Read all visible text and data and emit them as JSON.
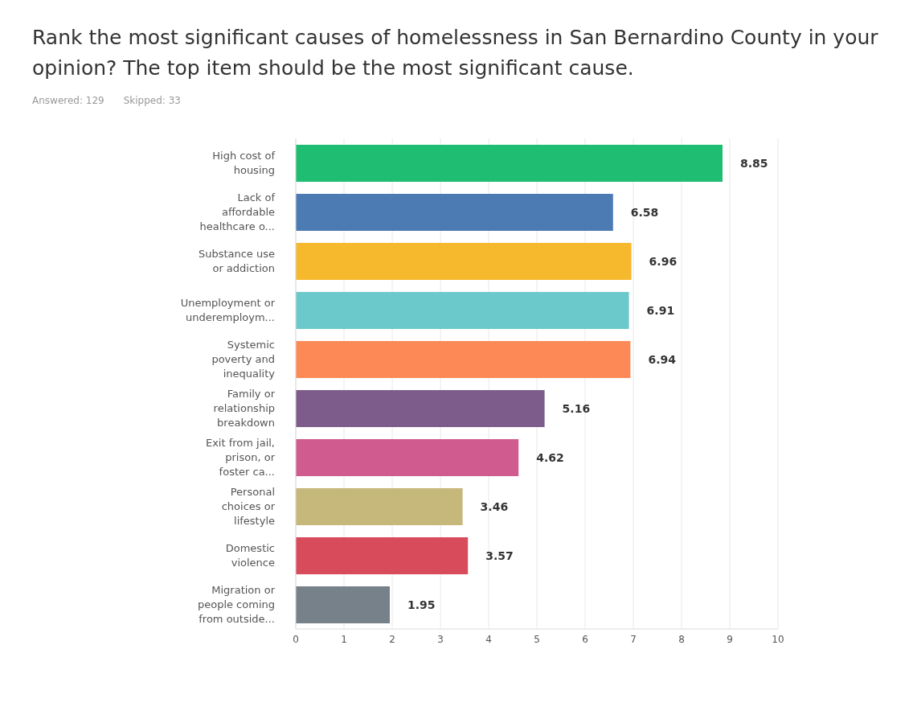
{
  "chart_data": {
    "type": "bar",
    "orientation": "horizontal",
    "title": "Rank the most significant causes of homelessness in San Bernardino County in your opinion? The top item should be the most significant cause.",
    "annotations": [
      "Answered: 129",
      "Skipped: 33"
    ],
    "categories": [
      "High cost of housing",
      "Lack of affordable healthcare o...",
      "Substance use or addiction",
      "Unemployment or underemploym...",
      "Systemic poverty and inequality",
      "Family or relationship breakdown",
      "Exit from jail, prison, or foster ca...",
      "Personal choices or lifestyle",
      "Domestic violence",
      "Migration or people coming from outside..."
    ],
    "values": [
      8.85,
      6.58,
      6.96,
      6.91,
      6.94,
      5.16,
      4.62,
      3.46,
      3.57,
      1.95
    ],
    "colors": [
      "#1ebd72",
      "#4c7bb4",
      "#f6b92e",
      "#6cc9cb",
      "#fd8a56",
      "#7d5c8b",
      "#d05c8f",
      "#c6b77b",
      "#d84b5b",
      "#77818a"
    ],
    "xlim": [
      0,
      10
    ],
    "xticks": [
      0,
      1,
      2,
      3,
      4,
      5,
      6,
      7,
      8,
      9,
      10
    ],
    "grid": "x",
    "data_labels": true
  }
}
